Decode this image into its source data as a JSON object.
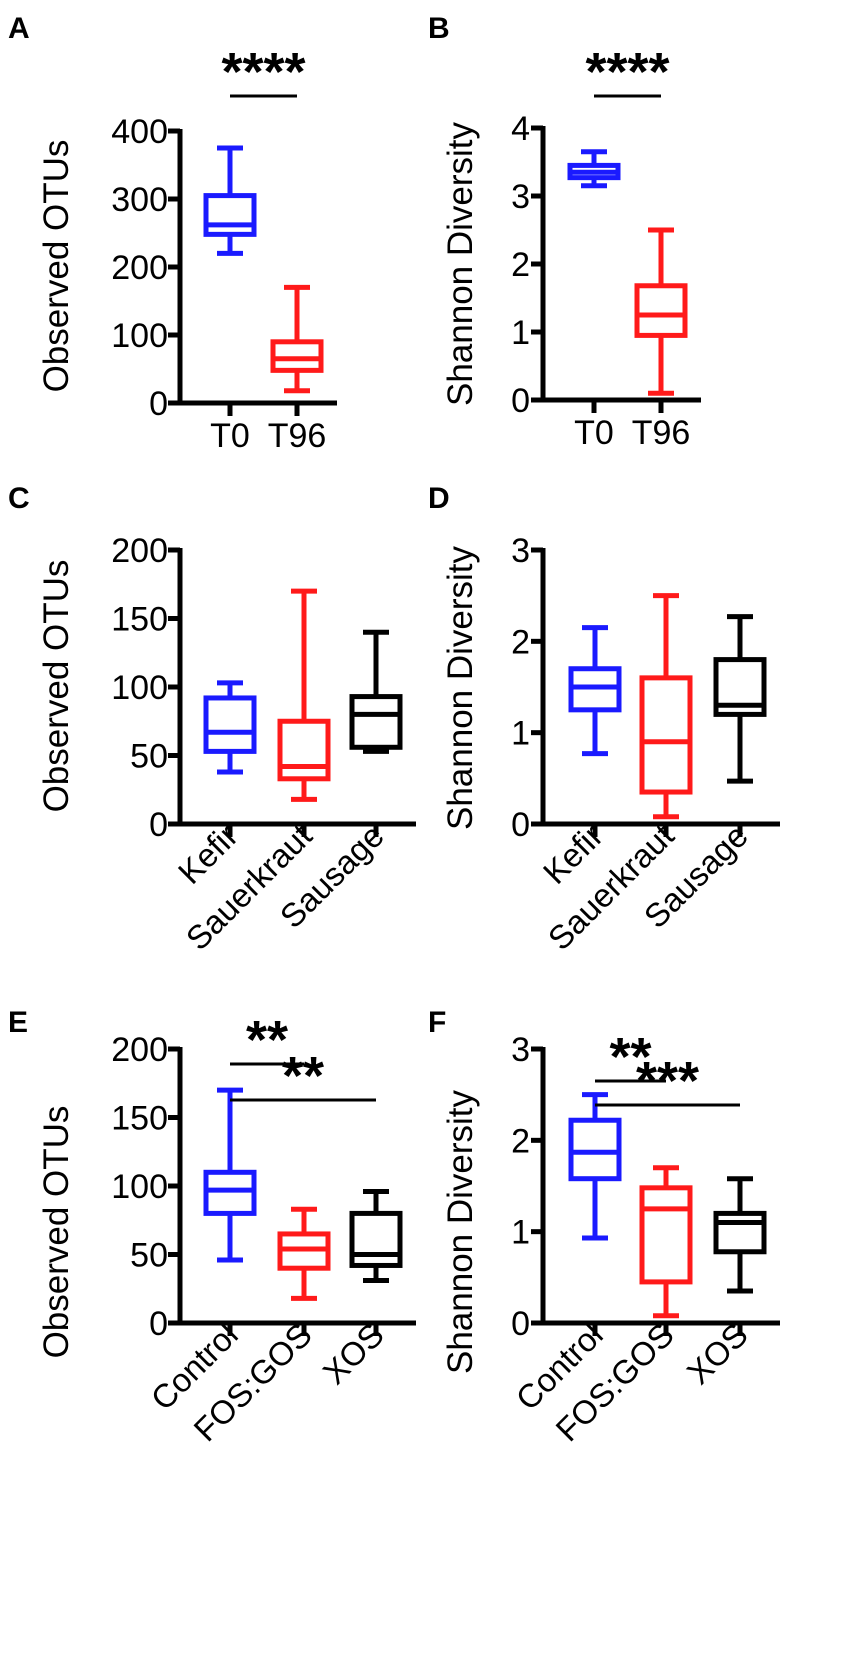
{
  "chart_data": [
    {
      "panel": "A",
      "type": "box",
      "ylabel": "Observed OTUs",
      "ylim": [
        0,
        400
      ],
      "yticks": [
        0,
        100,
        200,
        300,
        400
      ],
      "categories": [
        "T0",
        "T96"
      ],
      "boxes": [
        {
          "name": "T0",
          "color": "#1a1aff",
          "min": 220,
          "q1": 248,
          "median": 262,
          "q3": 305,
          "max": 375
        },
        {
          "name": "T96",
          "color": "#ff1a1a",
          "min": 18,
          "q1": 48,
          "median": 65,
          "q3": 90,
          "max": 170
        }
      ],
      "significance": [
        {
          "from": 0,
          "to": 1,
          "label": "****"
        }
      ]
    },
    {
      "panel": "B",
      "type": "box",
      "ylabel": "Shannon Diversity",
      "ylim": [
        0,
        4
      ],
      "yticks": [
        0,
        1,
        2,
        3,
        4
      ],
      "categories": [
        "T0",
        "T96"
      ],
      "boxes": [
        {
          "name": "T0",
          "color": "#1a1aff",
          "min": 3.15,
          "q1": 3.27,
          "median": 3.35,
          "q3": 3.45,
          "max": 3.65
        },
        {
          "name": "T96",
          "color": "#ff1a1a",
          "min": 0.1,
          "q1": 0.95,
          "median": 1.25,
          "q3": 1.68,
          "max": 2.5
        }
      ],
      "significance": [
        {
          "from": 0,
          "to": 1,
          "label": "****"
        }
      ]
    },
    {
      "panel": "C",
      "type": "box",
      "ylabel": "Observed OTUs",
      "ylim": [
        0,
        200
      ],
      "yticks": [
        0,
        50,
        100,
        150,
        200
      ],
      "categories": [
        "Kefir",
        "Sauerkraut",
        "Sausage"
      ],
      "boxes": [
        {
          "name": "Kefir",
          "color": "#1a1aff",
          "min": 38,
          "q1": 53,
          "median": 67,
          "q3": 92,
          "max": 103
        },
        {
          "name": "Sauerkraut",
          "color": "#ff1a1a",
          "min": 18,
          "q1": 33,
          "median": 42,
          "q3": 75,
          "max": 170
        },
        {
          "name": "Sausage",
          "color": "#000000",
          "min": 53,
          "q1": 56,
          "median": 80,
          "q3": 93,
          "max": 140
        }
      ],
      "significance": []
    },
    {
      "panel": "D",
      "type": "box",
      "ylabel": "Shannon Diversity",
      "ylim": [
        0,
        3
      ],
      "yticks": [
        0,
        1,
        2,
        3
      ],
      "categories": [
        "Kefir",
        "Sauerkraut",
        "Sausage"
      ],
      "boxes": [
        {
          "name": "Kefir",
          "color": "#1a1aff",
          "min": 0.77,
          "q1": 1.25,
          "median": 1.5,
          "q3": 1.7,
          "max": 2.15
        },
        {
          "name": "Sauerkraut",
          "color": "#ff1a1a",
          "min": 0.08,
          "q1": 0.35,
          "median": 0.9,
          "q3": 1.6,
          "max": 2.5
        },
        {
          "name": "Sausage",
          "color": "#000000",
          "min": 0.47,
          "q1": 1.2,
          "median": 1.3,
          "q3": 1.8,
          "max": 2.27
        }
      ],
      "significance": []
    },
    {
      "panel": "E",
      "type": "box",
      "ylabel": "Observed OTUs",
      "ylim": [
        0,
        200
      ],
      "yticks": [
        0,
        50,
        100,
        150,
        200
      ],
      "categories": [
        "Control",
        "FOS:GOS",
        "XOS"
      ],
      "boxes": [
        {
          "name": "Control",
          "color": "#1a1aff",
          "min": 46,
          "q1": 80,
          "median": 97,
          "q3": 110,
          "max": 170
        },
        {
          "name": "FOS:GOS",
          "color": "#ff1a1a",
          "min": 18,
          "q1": 40,
          "median": 54,
          "q3": 65,
          "max": 83
        },
        {
          "name": "XOS",
          "color": "#000000",
          "min": 31,
          "q1": 42,
          "median": 50,
          "q3": 80,
          "max": 96
        }
      ],
      "significance": [
        {
          "from": 0,
          "to": 1,
          "label": "**"
        },
        {
          "from": 0,
          "to": 2,
          "label": "**"
        }
      ]
    },
    {
      "panel": "F",
      "type": "box",
      "ylabel": "Shannon Diversity",
      "ylim": [
        0,
        3
      ],
      "yticks": [
        0,
        1,
        2,
        3
      ],
      "categories": [
        "Control",
        "FOS:GOS",
        "XOS"
      ],
      "boxes": [
        {
          "name": "Control",
          "color": "#1a1aff",
          "min": 0.93,
          "q1": 1.58,
          "median": 1.87,
          "q3": 2.22,
          "max": 2.5
        },
        {
          "name": "FOS:GOS",
          "color": "#ff1a1a",
          "min": 0.08,
          "q1": 0.45,
          "median": 1.25,
          "q3": 1.48,
          "max": 1.7
        },
        {
          "name": "XOS",
          "color": "#000000",
          "min": 0.35,
          "q1": 0.78,
          "median": 1.1,
          "q3": 1.2,
          "max": 1.58
        }
      ],
      "significance": [
        {
          "from": 0,
          "to": 1,
          "label": "**"
        },
        {
          "from": 0,
          "to": 2,
          "label": "***"
        }
      ]
    }
  ]
}
